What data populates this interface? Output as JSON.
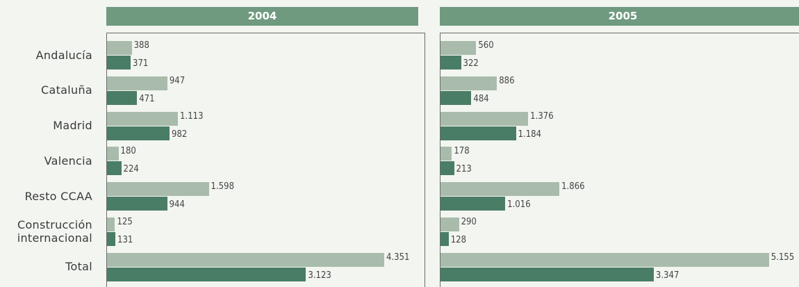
{
  "chart_data": [
    {
      "type": "bar",
      "orientation": "horizontal",
      "title": "2004",
      "categories": [
        "Andalucía",
        "Cataluña",
        "Madrid",
        "Valencia",
        "Resto CCAA",
        "Construcción internacional",
        "Total"
      ],
      "series": [
        {
          "color": "#a9bcab",
          "values": [
            388,
            947,
            1113,
            180,
            1598,
            125,
            4351
          ],
          "value_labels": [
            "388",
            "947",
            "1.113",
            "180",
            "1.598",
            "125",
            "4.351"
          ]
        },
        {
          "color": "#4a7d65",
          "values": [
            371,
            471,
            982,
            224,
            944,
            131,
            3123
          ],
          "value_labels": [
            "371",
            "471",
            "982",
            "224",
            "944",
            "131",
            "3.123"
          ]
        }
      ]
    },
    {
      "type": "bar",
      "orientation": "horizontal",
      "title": "2005",
      "series": [
        {
          "color": "#a9bcab",
          "values": [
            560,
            886,
            1376,
            178,
            1866,
            290,
            5155
          ],
          "value_labels": [
            "560",
            "886",
            "1.376",
            "178",
            "1.866",
            "290",
            "5.155"
          ]
        },
        {
          "color": "#4a7d65",
          "values": [
            322,
            484,
            1184,
            213,
            1016,
            128,
            3347
          ],
          "value_labels": [
            "322",
            "484",
            "1.184",
            "213",
            "1.016",
            "128",
            "3.347"
          ]
        }
      ]
    }
  ]
}
